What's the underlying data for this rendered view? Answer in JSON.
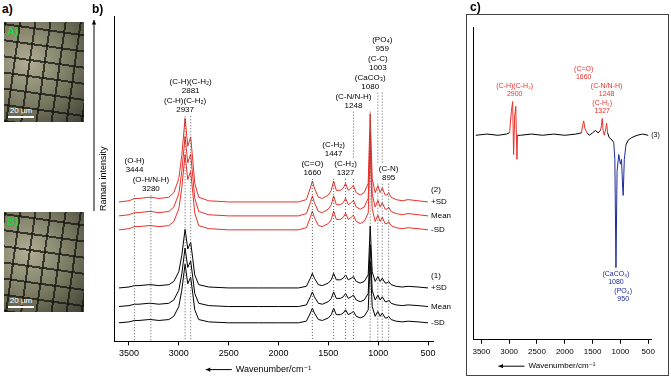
{
  "images": {
    "panel_label": "a)",
    "items": [
      {
        "label": "A)",
        "scale_bar": "20 µm"
      },
      {
        "label": "B)",
        "scale_bar": "20 µm"
      }
    ]
  },
  "chart_data": [
    {
      "type": "line",
      "panel_label": "b)",
      "x_label": "Wavenumber/cm⁻¹",
      "y_label": "Raman intensity",
      "xlim": [
        3650,
        450
      ],
      "xticks": [
        3500,
        3000,
        2500,
        2000,
        1500,
        1000,
        500
      ],
      "ylim": [
        0,
        140
      ],
      "tick_labels": "x",
      "grid": false,
      "x": [
        3600,
        3500,
        3444,
        3400,
        3300,
        3280,
        3200,
        3100,
        3050,
        3000,
        2970,
        2937,
        2910,
        2881,
        2860,
        2840,
        2800,
        2700,
        2500,
        2200,
        2000,
        1800,
        1720,
        1680,
        1660,
        1640,
        1600,
        1560,
        1500,
        1470,
        1447,
        1420,
        1380,
        1350,
        1327,
        1300,
        1270,
        1248,
        1220,
        1180,
        1140,
        1100,
        1080,
        1060,
        1030,
        1003,
        980,
        959,
        930,
        910,
        895,
        870,
        820,
        760,
        700,
        600,
        500
      ],
      "series": [
        {
          "label": "+SD",
          "group": "(2)",
          "color": "#e8302a",
          "values": [
            60,
            60.5,
            61.5,
            61.5,
            62,
            62,
            61.5,
            62,
            64,
            70,
            80,
            96,
            84,
            88,
            78,
            68,
            62,
            60.5,
            60,
            60,
            60,
            60,
            61,
            66,
            69,
            66,
            62,
            61.5,
            63,
            65,
            69,
            65,
            65,
            66,
            68,
            65,
            66,
            67,
            64,
            63,
            64,
            68,
            98,
            70,
            64,
            67,
            64,
            66,
            63,
            63,
            64,
            62,
            61,
            60.5,
            61,
            60.5,
            60
          ]
        },
        {
          "label": "Mean",
          "group": "(2)",
          "color": "#e8302a",
          "values": [
            54,
            54.5,
            55.4,
            55.4,
            55.9,
            55.9,
            55.4,
            55.9,
            57.8,
            63.5,
            73,
            88.2,
            76.8,
            80.6,
            71.1,
            61.6,
            55.9,
            54.5,
            54,
            54,
            54,
            54,
            55,
            59.7,
            62.6,
            59.7,
            55.9,
            55.4,
            56.9,
            58.8,
            62.6,
            58.8,
            58.8,
            59.7,
            61.6,
            58.8,
            59.7,
            60.7,
            57.8,
            56.9,
            57.8,
            61.6,
            90.1,
            63.5,
            57.8,
            60.7,
            57.8,
            59.7,
            56.9,
            56.9,
            57.8,
            55.9,
            55,
            54.5,
            55,
            54.5,
            54
          ]
        },
        {
          "label": "-SD",
          "group": "(2)",
          "color": "#e8302a",
          "values": [
            48,
            48.5,
            49.4,
            49.4,
            49.8,
            49.8,
            49.4,
            49.8,
            51.6,
            57,
            66,
            80.4,
            69.6,
            73.2,
            64.2,
            55.2,
            49.8,
            48.5,
            48,
            48,
            48,
            48,
            48.9,
            53.4,
            56.1,
            53.4,
            49.8,
            49.4,
            50.7,
            52.5,
            56.1,
            52.5,
            52.5,
            53.4,
            55.2,
            52.5,
            53.4,
            54.3,
            51.6,
            50.7,
            51.6,
            55.2,
            82.2,
            57,
            51.6,
            54.3,
            51.6,
            53.4,
            50.7,
            50.7,
            51.6,
            49.8,
            48.9,
            48.5,
            48.9,
            48.5,
            48
          ]
        },
        {
          "label": "+SD",
          "group": "(1)",
          "color": "#000000",
          "values": [
            23,
            23.4,
            24,
            24,
            24.4,
            24.4,
            24,
            24.4,
            25.8,
            30,
            37,
            48.2,
            39.8,
            42.6,
            35.6,
            28.6,
            24.4,
            23.4,
            23,
            23,
            23,
            23,
            23.7,
            27.2,
            29.3,
            27.2,
            24.4,
            24,
            25.1,
            26.5,
            29.3,
            26.5,
            26.5,
            27.2,
            28.6,
            26.5,
            27.2,
            27.9,
            25.8,
            25.1,
            25.8,
            28.6,
            49.6,
            30,
            25.8,
            27.9,
            25.8,
            27.2,
            25.1,
            25.1,
            25.8,
            24.4,
            23.7,
            23.4,
            23.7,
            23.4,
            23
          ]
        },
        {
          "label": "Mean",
          "group": "(1)",
          "color": "#000000",
          "values": [
            15,
            15.4,
            16,
            16,
            16.4,
            16.4,
            16,
            16.4,
            17.8,
            22,
            29,
            40.2,
            31.8,
            34.6,
            27.6,
            20.6,
            16.4,
            15.4,
            15,
            15,
            15,
            15,
            15.7,
            19.2,
            21.3,
            19.2,
            16.4,
            16,
            17.1,
            18.5,
            21.3,
            18.5,
            18.5,
            19.2,
            20.6,
            18.5,
            19.2,
            19.9,
            17.8,
            17.1,
            17.8,
            20.6,
            41.6,
            22,
            17.8,
            19.9,
            17.8,
            19.2,
            17.1,
            17.1,
            17.8,
            16.4,
            15.7,
            15.4,
            15.7,
            15.4,
            15
          ]
        },
        {
          "label": "-SD",
          "group": "(1)",
          "color": "#000000",
          "values": [
            8,
            8.4,
            9,
            9,
            9.4,
            9.4,
            9,
            9.4,
            10.8,
            15,
            22,
            33.2,
            24.8,
            27.6,
            20.6,
            13.6,
            9.4,
            8.4,
            8,
            8,
            8,
            8,
            8.7,
            12.2,
            14.3,
            12.2,
            9.4,
            9,
            10.1,
            11.5,
            14.3,
            11.5,
            11.5,
            12.2,
            13.6,
            11.5,
            12.2,
            12.9,
            10.8,
            10.1,
            10.8,
            13.6,
            34.6,
            15,
            10.8,
            12.9,
            10.8,
            12.2,
            10.1,
            10.1,
            10.8,
            9.4,
            8.7,
            8.4,
            8.7,
            8.4,
            8
          ]
        }
      ],
      "annotations": [
        {
          "x": 3444,
          "text": [
            "(O-H)",
            "3444"
          ],
          "line_style": "dotted"
        },
        {
          "x": 3280,
          "text": [
            "(O-H/N-H)",
            "3280"
          ],
          "line_style": "dotted"
        },
        {
          "x": 2937,
          "text": [
            "(C-H)(C-H₂)",
            "2937"
          ],
          "line_style": "dotted"
        },
        {
          "x": 2881,
          "text": [
            "(C-H)(C-H₂)",
            "2881"
          ],
          "line_style": "dotted"
        },
        {
          "x": 1660,
          "text": [
            "(C=O)",
            "1660"
          ],
          "line_style": "dotted"
        },
        {
          "x": 1447,
          "text": [
            "(C-H₂)",
            "1447"
          ],
          "line_style": "dotted"
        },
        {
          "x": 1327,
          "text": [
            "(C-H₂)",
            "1327"
          ],
          "line_style": "dotted"
        },
        {
          "x": 1248,
          "text": [
            "(C-N/N-H)",
            "1248"
          ],
          "line_style": "dotted"
        },
        {
          "x": 1080,
          "text": [
            "(CaCO₃)",
            "1080"
          ],
          "line_style": "dotted"
        },
        {
          "x": 1003,
          "text": [
            "(C-C)",
            "1003"
          ],
          "line_style": "dotted"
        },
        {
          "x": 959,
          "text": [
            "(PO₄)",
            "959"
          ],
          "line_style": "dotted"
        },
        {
          "x": 895,
          "text": [
            "(C-N)",
            "895"
          ],
          "line_style": "dotted"
        }
      ]
    },
    {
      "type": "line",
      "panel_label": "c)",
      "x_label": "Wavenumber/cm⁻¹",
      "xlim": [
        3650,
        450
      ],
      "xticks": [
        3500,
        3000,
        2500,
        2000,
        1500,
        1000,
        500
      ],
      "ylim": [
        -15,
        115
      ],
      "tick_labels": "x",
      "grid": false,
      "x": [
        3600,
        3400,
        3200,
        3050,
        3000,
        2990,
        2960,
        2937,
        2920,
        2900,
        2881,
        2860,
        2850,
        2800,
        2600,
        2400,
        2200,
        2000,
        1800,
        1700,
        1680,
        1660,
        1640,
        1600,
        1560,
        1500,
        1450,
        1400,
        1360,
        1340,
        1327,
        1310,
        1290,
        1260,
        1248,
        1230,
        1200,
        1150,
        1120,
        1100,
        1080,
        1060,
        1030,
        1000,
        980,
        959,
        950,
        930,
        900,
        860,
        800,
        700,
        600,
        500
      ],
      "series": [
        {
          "label": "(3)",
          "color": "#000000",
          "values": [
            70,
            70.5,
            70,
            70.5,
            71,
            null,
            null,
            null,
            null,
            null,
            null,
            null,
            70,
            70,
            70.5,
            70,
            70.5,
            70,
            70.5,
            71,
            null,
            null,
            null,
            71,
            70,
            71,
            72,
            71,
            72,
            null,
            null,
            null,
            null,
            null,
            null,
            71,
            69,
            68,
            67,
            null,
            null,
            null,
            null,
            null,
            null,
            null,
            null,
            null,
            66,
            68,
            69,
            70,
            70.5,
            70
          ]
        },
        {
          "color": "#e8302a",
          "values": [
            null,
            null,
            null,
            null,
            71,
            72,
            80,
            84,
            62,
            78,
            82,
            60,
            70,
            null,
            null,
            null,
            null,
            null,
            null,
            71,
            74,
            76,
            73,
            71,
            null,
            null,
            null,
            null,
            72,
            74,
            77,
            72,
            70,
            73,
            75,
            71,
            null,
            null,
            null,
            null,
            null,
            null,
            null,
            null,
            null,
            null,
            null,
            null,
            null,
            null,
            null,
            null,
            null,
            null
          ]
        },
        {
          "color": "#1a2a9a",
          "values": [
            null,
            null,
            null,
            null,
            null,
            null,
            null,
            null,
            null,
            null,
            null,
            null,
            null,
            null,
            null,
            null,
            null,
            null,
            null,
            null,
            null,
            null,
            null,
            null,
            null,
            null,
            null,
            null,
            null,
            null,
            null,
            null,
            null,
            null,
            null,
            null,
            null,
            null,
            67,
            60,
            15,
            55,
            62,
            58,
            60,
            48,
            45,
            60,
            66,
            null,
            null,
            null,
            null,
            null
          ]
        }
      ],
      "annotations": [
        {
          "x": 2900,
          "text": [
            "(C-H)(C-H₂)",
            "2900"
          ],
          "color": "#e8302a"
        },
        {
          "x": 1660,
          "text": [
            "(C=O)",
            "1660"
          ],
          "color": "#e8302a"
        },
        {
          "x": 1327,
          "text": [
            "(C-H₂)",
            "1327"
          ],
          "color": "#e8302a"
        },
        {
          "x": 1248,
          "text": [
            "(C-N/N-H)",
            "1248"
          ],
          "color": "#e8302a"
        },
        {
          "x": 1080,
          "text": [
            "(CaCO₃)",
            "1080"
          ],
          "color": "#1a2a9a"
        },
        {
          "x": 950,
          "text": [
            "(PO₄)",
            "950"
          ],
          "color": "#1a2a9a"
        }
      ]
    }
  ]
}
